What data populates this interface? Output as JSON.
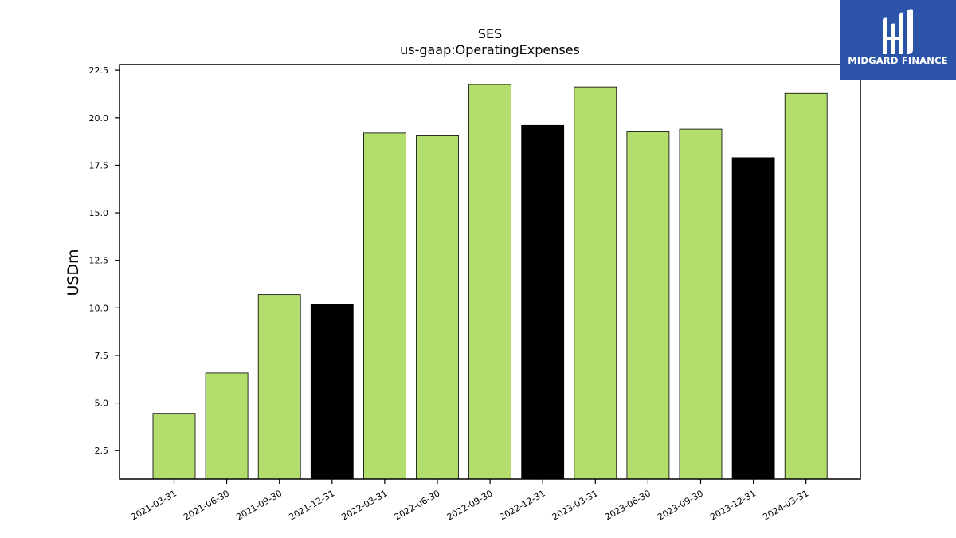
{
  "chart_data": {
    "type": "bar",
    "title": "SES",
    "subtitle": "us-gaap:OperatingExpenses",
    "xlabel": "",
    "ylabel": "USDm",
    "ylim": [
      1.0,
      22.8
    ],
    "yticks": [
      "2.5",
      "5.0",
      "7.5",
      "10.0",
      "12.5",
      "15.0",
      "17.5",
      "20.0",
      "22.5"
    ],
    "categories": [
      "2021-03-31",
      "2021-06-30",
      "2021-09-30",
      "2021-12-31",
      "2022-03-31",
      "2022-06-30",
      "2022-09-30",
      "2022-12-31",
      "2023-03-31",
      "2023-06-30",
      "2023-09-30",
      "2023-12-31",
      "2024-03-31"
    ],
    "values": [
      4.45,
      6.58,
      10.7,
      10.2,
      19.2,
      19.05,
      21.75,
      19.6,
      21.62,
      19.3,
      19.4,
      17.9,
      21.28
    ],
    "bar_colors": [
      "#b3de6e",
      "#b3de6e",
      "#b3de6e",
      "#000000",
      "#b3de6e",
      "#b3de6e",
      "#b3de6e",
      "#000000",
      "#b3de6e",
      "#b3de6e",
      "#b3de6e",
      "#000000",
      "#b3de6e"
    ],
    "grid": false,
    "legend": "none"
  },
  "logo": {
    "text": "MIDGARD FINANCE",
    "background": "#2b54a8",
    "icon": "midgard-logo-icon"
  }
}
